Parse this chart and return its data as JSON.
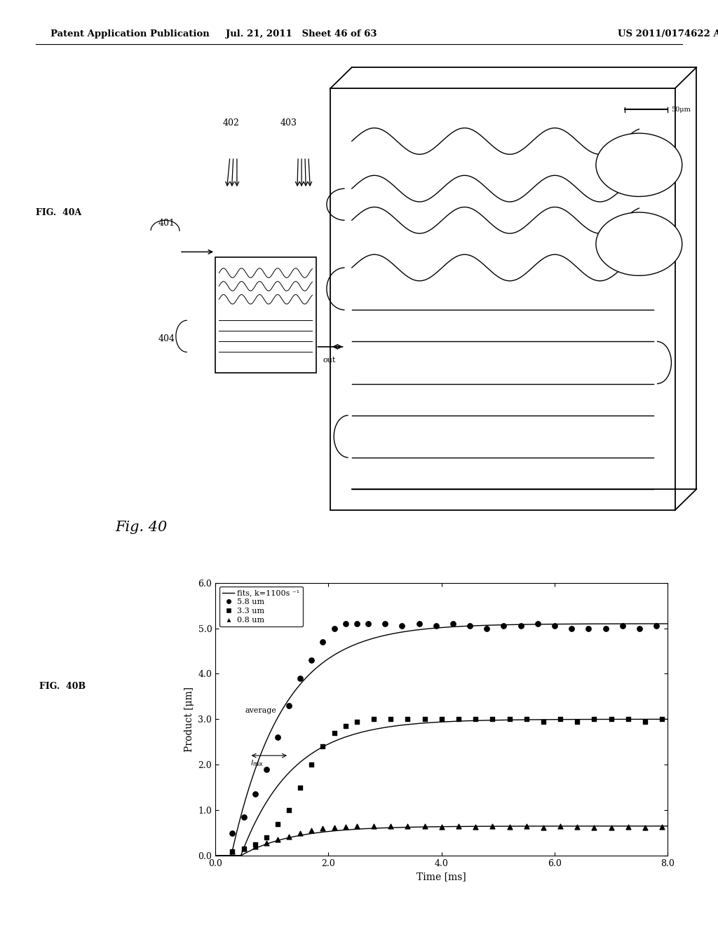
{
  "header_left": "Patent Application Publication",
  "header_mid": "Jul. 21, 2011   Sheet 46 of 63",
  "header_right": "US 2011/0174622 A1",
  "fig40a_label": "FIG.  40A",
  "fig40_caption": "Fig. 40",
  "fig40b_label": "FIG.  40B",
  "graph_xlabel": "Time [ms]",
  "graph_ylabel": "Product [μm]",
  "xlim": [
    0.0,
    8.0
  ],
  "ylim": [
    0.0,
    6.0
  ],
  "xticks": [
    0.0,
    2.0,
    4.0,
    6.0,
    8.0
  ],
  "xtick_labels": [
    "0.0",
    "2.0",
    "4.0",
    "6.0",
    "8.0"
  ],
  "yticks": [
    0.0,
    1.0,
    2.0,
    3.0,
    4.0,
    5.0,
    6.0
  ],
  "ytick_labels": [
    "0.0",
    "1.0",
    "2.0",
    "3.0",
    "4.0",
    "5.0",
    "6.0"
  ],
  "legend_line": "fits, k=1100s ⁻¹",
  "legend_circle": "5.8 um",
  "legend_square": "3.3 um",
  "legend_triangle": "0.8 um",
  "series1_x": [
    0.3,
    0.5,
    0.7,
    0.9,
    1.1,
    1.3,
    1.5,
    1.7,
    1.9,
    2.1,
    2.3,
    2.5,
    2.7,
    3.0,
    3.3,
    3.6,
    3.9,
    4.2,
    4.5,
    4.8,
    5.1,
    5.4,
    5.7,
    6.0,
    6.3,
    6.6,
    6.9,
    7.2,
    7.5,
    7.8
  ],
  "series1_y": [
    0.5,
    0.85,
    1.35,
    1.9,
    2.6,
    3.3,
    3.9,
    4.3,
    4.7,
    5.0,
    5.1,
    5.1,
    5.1,
    5.1,
    5.05,
    5.1,
    5.05,
    5.1,
    5.05,
    5.0,
    5.05,
    5.05,
    5.1,
    5.05,
    5.0,
    5.0,
    5.0,
    5.05,
    5.0,
    5.05
  ],
  "series2_x": [
    0.3,
    0.5,
    0.7,
    0.9,
    1.1,
    1.3,
    1.5,
    1.7,
    1.9,
    2.1,
    2.3,
    2.5,
    2.8,
    3.1,
    3.4,
    3.7,
    4.0,
    4.3,
    4.6,
    4.9,
    5.2,
    5.5,
    5.8,
    6.1,
    6.4,
    6.7,
    7.0,
    7.3,
    7.6,
    7.9
  ],
  "series2_y": [
    0.1,
    0.15,
    0.25,
    0.4,
    0.7,
    1.0,
    1.5,
    2.0,
    2.4,
    2.7,
    2.85,
    2.95,
    3.0,
    3.0,
    3.0,
    3.0,
    3.0,
    3.0,
    3.0,
    3.0,
    3.0,
    3.0,
    2.95,
    3.0,
    2.95,
    3.0,
    3.0,
    3.0,
    2.95,
    3.0
  ],
  "series3_x": [
    0.3,
    0.5,
    0.7,
    0.9,
    1.1,
    1.3,
    1.5,
    1.7,
    1.9,
    2.1,
    2.3,
    2.5,
    2.8,
    3.1,
    3.4,
    3.7,
    4.0,
    4.3,
    4.6,
    4.9,
    5.2,
    5.5,
    5.8,
    6.1,
    6.4,
    6.7,
    7.0,
    7.3,
    7.6,
    7.9
  ],
  "series3_y": [
    0.1,
    0.15,
    0.2,
    0.28,
    0.35,
    0.42,
    0.5,
    0.55,
    0.6,
    0.62,
    0.63,
    0.65,
    0.65,
    0.65,
    0.65,
    0.65,
    0.63,
    0.65,
    0.63,
    0.65,
    0.63,
    0.65,
    0.62,
    0.65,
    0.63,
    0.62,
    0.62,
    0.63,
    0.62,
    0.63
  ],
  "fit1_A": 5.1,
  "fit2_A": 3.0,
  "fit3_A": 0.65,
  "fit_k_ms": 1.1,
  "fit_t0_1": 0.28,
  "fit_t0_2": 0.45,
  "fit_t0_3": 0.45,
  "background_color": "#ffffff",
  "text_color": "#000000"
}
